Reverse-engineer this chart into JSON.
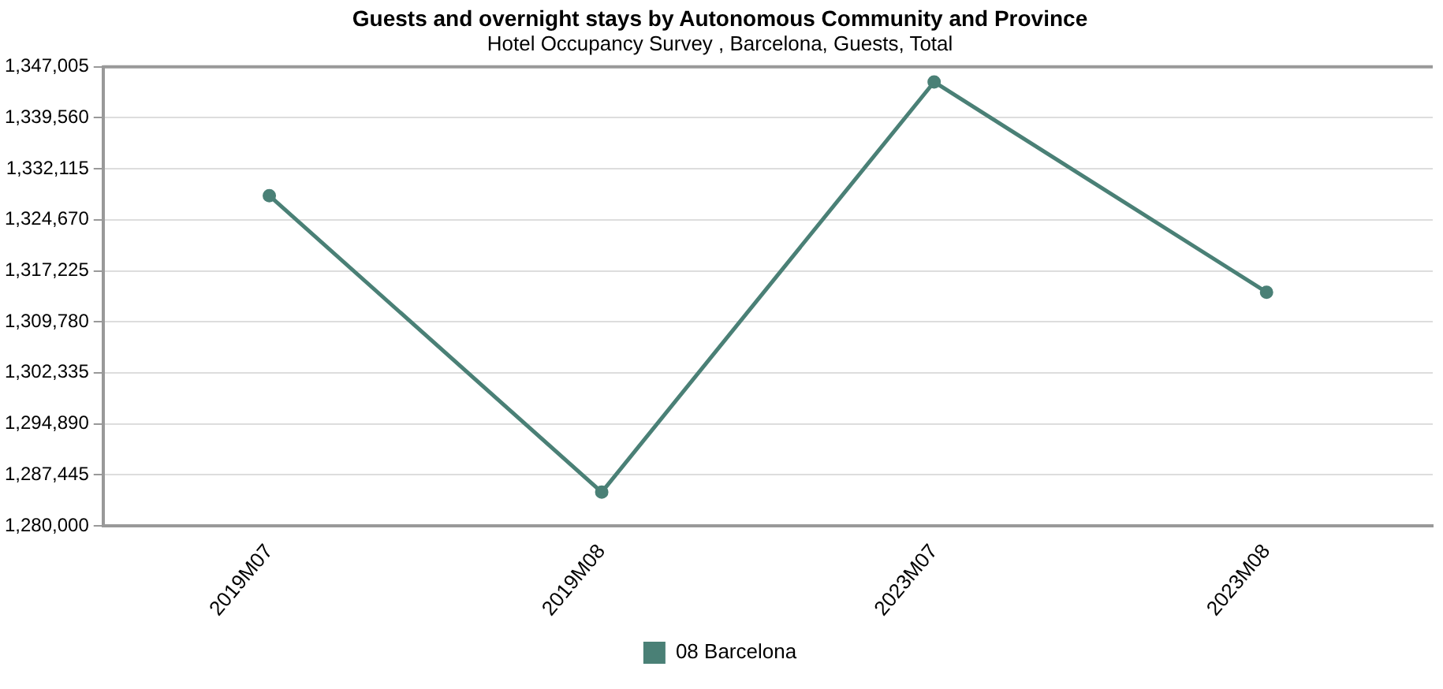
{
  "chart_data": {
    "type": "line",
    "title": "Guests and overnight stays by Autonomous Community and Province",
    "subtitle": "Hotel Occupancy Survey , Barcelona, Guests, Total",
    "categories": [
      "2019M07",
      "2019M08",
      "2023M07",
      "2023M08"
    ],
    "series": [
      {
        "name": "08 Barcelona",
        "color": "#4a8076",
        "values": [
          1328200,
          1284900,
          1344800,
          1314100
        ]
      }
    ],
    "ylim": [
      1280000,
      1347005
    ],
    "yticks": [
      {
        "value": 1280000,
        "label": "1,280,000"
      },
      {
        "value": 1287445,
        "label": "1,287,445"
      },
      {
        "value": 1294890,
        "label": "1,294,890"
      },
      {
        "value": 1302335,
        "label": "1,302,335"
      },
      {
        "value": 1309780,
        "label": "1,309,780"
      },
      {
        "value": 1317225,
        "label": "1,317,225"
      },
      {
        "value": 1324670,
        "label": "1,324,670"
      },
      {
        "value": 1332115,
        "label": "1,332,115"
      },
      {
        "value": 1339560,
        "label": "1,339,560"
      },
      {
        "value": 1347005,
        "label": "1,347,005"
      }
    ],
    "grid": "y",
    "legend": "bottom",
    "marker": "circle",
    "line_style": "solid"
  }
}
